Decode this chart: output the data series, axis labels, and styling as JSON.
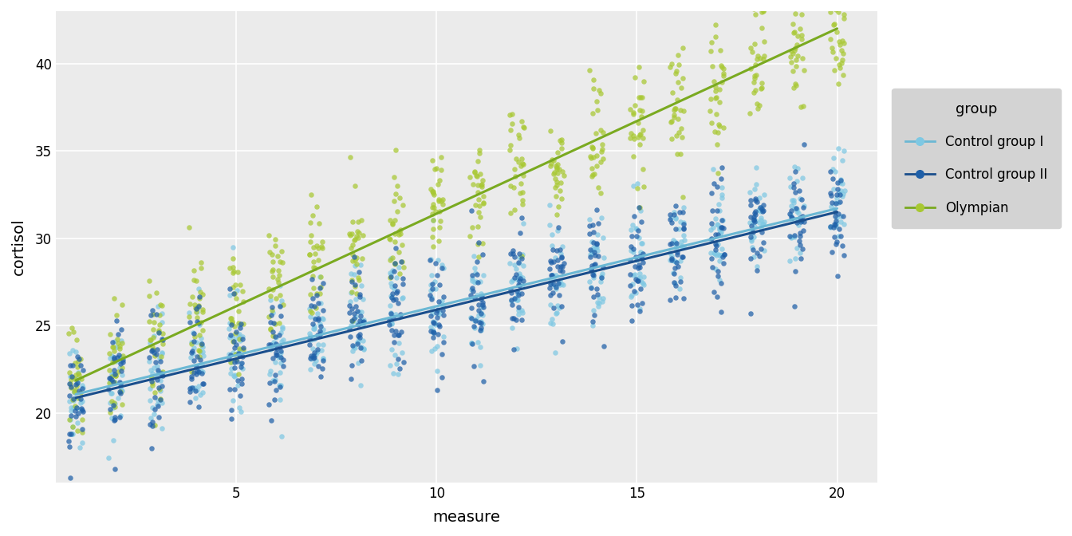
{
  "title": "",
  "xlabel": "measure",
  "ylabel": "cortisol",
  "xlim": [
    0.5,
    21.0
  ],
  "ylim": [
    16,
    43
  ],
  "xticks": [
    5,
    10,
    15,
    20
  ],
  "yticks": [
    20,
    25,
    30,
    35,
    40
  ],
  "background_color": "#ffffff",
  "panel_background": "#ebebeb",
  "grid_color": "#ffffff",
  "n_measures": 20,
  "n_per_group_per_measure": 30,
  "groups": [
    "Control group I",
    "Control group II",
    "Olympian"
  ],
  "group_colors": [
    "#7EC8E3",
    "#1E5FA8",
    "#A8C832"
  ],
  "group_line_colors": [
    "#6BB8D4",
    "#1A4E8C",
    "#7AAA20"
  ],
  "seed": 42,
  "ctrl1_intercept": 20.5,
  "ctrl1_slope": 0.56,
  "ctrl1_noise": 1.6,
  "ctrl2_intercept": 20.3,
  "ctrl2_slope": 0.56,
  "ctrl2_noise": 1.6,
  "olymp_intercept": 20.8,
  "olymp_slope": 1.06,
  "olymp_noise": 1.8,
  "legend_title": "group",
  "legend_bg": "#d3d3d3",
  "jitter_strength": 0.18,
  "point_size": 22,
  "point_alpha": 0.72,
  "line_width": 2.2
}
